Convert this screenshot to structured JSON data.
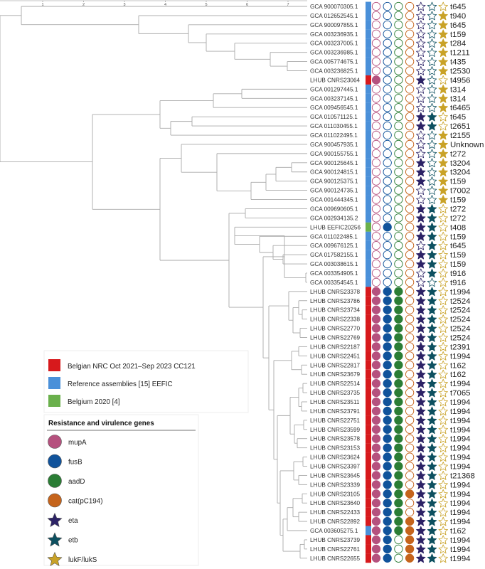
{
  "axis": {
    "ticks": [
      "1",
      "2",
      "3",
      "4",
      "5",
      "6",
      "7"
    ]
  },
  "colors": {
    "Belgian NRC": "#d7191c",
    "Reference": "#4a90d9",
    "Belgium 2020": "#6ab04c",
    "mupA": "#b5517e",
    "fusB": "#11539b",
    "aadD": "#2b7d35",
    "cat": "#c5641c",
    "eta": "#2c2266",
    "etb": "#0d5060",
    "lukF": "#c9a227"
  },
  "legend": {
    "sources": [
      {
        "label": "Belgian NRC Oct 2021–Sep 2023 CC121",
        "color": "#d7191c"
      },
      {
        "label": "Reference assemblies [15] EEFIC",
        "color": "#4a90d9"
      },
      {
        "label": "Belgium 2020 [4]",
        "color": "#6ab04c"
      }
    ],
    "genes_title": "Resistance and virulence genes",
    "genes": [
      {
        "label": "mupA",
        "shape": "circle",
        "color": "#b5517e"
      },
      {
        "label": "fusB",
        "shape": "circle",
        "color": "#11539b"
      },
      {
        "label": "aadD",
        "shape": "circle",
        "color": "#2b7d35"
      },
      {
        "label": "cat(pC194)",
        "shape": "circle",
        "color": "#c5641c"
      },
      {
        "label": "eta",
        "shape": "star",
        "color": "#2c2266"
      },
      {
        "label": "etb",
        "shape": "star",
        "color": "#0d5060"
      },
      {
        "label": "lukF/lukS",
        "shape": "star",
        "color": "#c9a227"
      }
    ]
  },
  "tips": [
    {
      "label": "GCA 900070305.1",
      "source": "Reference",
      "genes": [
        0,
        0,
        0,
        0,
        0,
        0,
        0
      ],
      "spa": "t645"
    },
    {
      "label": "GCA 012652545.1",
      "source": "Reference",
      "genes": [
        0,
        0,
        0,
        0,
        0,
        0,
        1
      ],
      "spa": "t940"
    },
    {
      "label": "GCA 900097855.1",
      "source": "Reference",
      "genes": [
        0,
        0,
        0,
        0,
        0,
        0,
        1
      ],
      "spa": "t645"
    },
    {
      "label": "GCA 003236935.1",
      "source": "Reference",
      "genes": [
        0,
        0,
        0,
        0,
        0,
        0,
        1
      ],
      "spa": "t159"
    },
    {
      "label": "GCA 003237005.1",
      "source": "Reference",
      "genes": [
        0,
        0,
        0,
        0,
        0,
        0,
        1
      ],
      "spa": "t284"
    },
    {
      "label": "GCA 003236985.1",
      "source": "Reference",
      "genes": [
        0,
        0,
        0,
        0,
        0,
        0,
        1
      ],
      "spa": "t1211"
    },
    {
      "label": "GCA 005774675.1",
      "source": "Reference",
      "genes": [
        0,
        0,
        0,
        0,
        0,
        0,
        1
      ],
      "spa": "t435"
    },
    {
      "label": "GCA 003236825.1",
      "source": "Reference",
      "genes": [
        0,
        0,
        0,
        0,
        0,
        0,
        1
      ],
      "spa": "t2530"
    },
    {
      "label": "LHUB CNRS23064",
      "source": "Belgian NRC",
      "genes": [
        1,
        0,
        0,
        0,
        1,
        0,
        0
      ],
      "spa": "t4956"
    },
    {
      "label": "GCA 001297445.1",
      "source": "Reference",
      "genes": [
        0,
        0,
        0,
        0,
        0,
        0,
        1
      ],
      "spa": "t314"
    },
    {
      "label": "GCA 003237145.1",
      "source": "Reference",
      "genes": [
        0,
        0,
        0,
        0,
        0,
        0,
        1
      ],
      "spa": "t314"
    },
    {
      "label": "GCA 009456545.1",
      "source": "Reference",
      "genes": [
        0,
        0,
        0,
        0,
        0,
        0,
        1
      ],
      "spa": "t6465"
    },
    {
      "label": "GCA 010571125.1",
      "source": "Reference",
      "genes": [
        0,
        0,
        0,
        0,
        1,
        1,
        0
      ],
      "spa": "t645"
    },
    {
      "label": "GCA 011030455.1",
      "source": "Reference",
      "genes": [
        0,
        0,
        0,
        0,
        1,
        1,
        0
      ],
      "spa": "t2651"
    },
    {
      "label": "GCA 011022495.1",
      "source": "Reference",
      "genes": [
        0,
        0,
        0,
        0,
        0,
        0,
        1
      ],
      "spa": "t2155"
    },
    {
      "label": "GCA 900457935.1",
      "source": "Reference",
      "genes": [
        0,
        0,
        0,
        0,
        0,
        0,
        1
      ],
      "spa": "Unknown"
    },
    {
      "label": "GCA 900155755.1",
      "source": "Reference",
      "genes": [
        0,
        0,
        0,
        0,
        0,
        0,
        1
      ],
      "spa": "t272"
    },
    {
      "label": "GCA 900125645.1",
      "source": "Reference",
      "genes": [
        0,
        0,
        0,
        0,
        1,
        0,
        1
      ],
      "spa": "t3204"
    },
    {
      "label": "GCA 900124815.1",
      "source": "Reference",
      "genes": [
        0,
        0,
        0,
        0,
        1,
        0,
        1
      ],
      "spa": "t3204"
    },
    {
      "label": "GCA 900125375.1",
      "source": "Reference",
      "genes": [
        0,
        0,
        0,
        0,
        1,
        0,
        1
      ],
      "spa": "t159"
    },
    {
      "label": "GCA 900124735.1",
      "source": "Reference",
      "genes": [
        0,
        0,
        0,
        0,
        0,
        0,
        1
      ],
      "spa": "t7002"
    },
    {
      "label": "GCA 001444345.1",
      "source": "Reference",
      "genes": [
        0,
        0,
        0,
        0,
        0,
        0,
        1
      ],
      "spa": "t159"
    },
    {
      "label": "GCA 009690605.1",
      "source": "Reference",
      "genes": [
        0,
        0,
        0,
        0,
        1,
        1,
        0
      ],
      "spa": "t272"
    },
    {
      "label": "GCA 002934135.2",
      "source": "Reference",
      "genes": [
        0,
        0,
        0,
        0,
        1,
        1,
        0
      ],
      "spa": "t272"
    },
    {
      "label": "LHUB EEFIC20256",
      "source": "Belgium 2020",
      "genes": [
        0,
        1,
        0,
        0,
        1,
        1,
        0
      ],
      "spa": "t408"
    },
    {
      "label": "GCA 011022485.1",
      "source": "Reference",
      "genes": [
        0,
        0,
        0,
        0,
        1,
        1,
        0
      ],
      "spa": "t159"
    },
    {
      "label": "GCA 009676125.1",
      "source": "Reference",
      "genes": [
        0,
        0,
        0,
        0,
        0,
        1,
        0
      ],
      "spa": "t645"
    },
    {
      "label": "GCA 017582155.1",
      "source": "Reference",
      "genes": [
        0,
        0,
        0,
        0,
        1,
        1,
        0
      ],
      "spa": "t159"
    },
    {
      "label": "GCA 003038615.1",
      "source": "Reference",
      "genes": [
        0,
        0,
        0,
        0,
        1,
        1,
        0
      ],
      "spa": "t159"
    },
    {
      "label": "GCA 003354905.1",
      "source": "Reference",
      "genes": [
        0,
        0,
        0,
        0,
        0,
        1,
        0
      ],
      "spa": "t916"
    },
    {
      "label": "GCA 003354545.1",
      "source": "Reference",
      "genes": [
        0,
        0,
        0,
        0,
        0,
        0,
        0
      ],
      "spa": "t916"
    },
    {
      "label": "LHUB CNRS23378",
      "source": "Belgian NRC",
      "genes": [
        1,
        1,
        1,
        0,
        1,
        1,
        0
      ],
      "spa": "t1994"
    },
    {
      "label": "LHUB CNRS23786",
      "source": "Belgian NRC",
      "genes": [
        1,
        1,
        1,
        0,
        1,
        1,
        0
      ],
      "spa": "t2524"
    },
    {
      "label": "LHUB CNRS23734",
      "source": "Belgian NRC",
      "genes": [
        1,
        1,
        1,
        0,
        1,
        1,
        0
      ],
      "spa": "t2524"
    },
    {
      "label": "LHUB CNRS22338",
      "source": "Belgian NRC",
      "genes": [
        1,
        1,
        1,
        0,
        1,
        1,
        0
      ],
      "spa": "t2524"
    },
    {
      "label": "LHUB CNRS22770",
      "source": "Belgian NRC",
      "genes": [
        1,
        1,
        1,
        0,
        1,
        1,
        0
      ],
      "spa": "t2524"
    },
    {
      "label": "LHUB CNRS22769",
      "source": "Belgian NRC",
      "genes": [
        1,
        1,
        1,
        0,
        1,
        1,
        0
      ],
      "spa": "t2524"
    },
    {
      "label": "LHUB CNRS22187",
      "source": "Belgian NRC",
      "genes": [
        1,
        1,
        1,
        0,
        1,
        1,
        0
      ],
      "spa": "t2391"
    },
    {
      "label": "LHUB CNRS22451",
      "source": "Belgian NRC",
      "genes": [
        1,
        1,
        1,
        0,
        1,
        1,
        0
      ],
      "spa": "t1994"
    },
    {
      "label": "LHUB CNRS22817",
      "source": "Belgian NRC",
      "genes": [
        1,
        1,
        1,
        0,
        1,
        1,
        0
      ],
      "spa": "t162"
    },
    {
      "label": "LHUB CNRS23679",
      "source": "Belgian NRC",
      "genes": [
        1,
        1,
        1,
        0,
        1,
        1,
        0
      ],
      "spa": "t162"
    },
    {
      "label": "LHUB CNRS22514",
      "source": "Belgian NRC",
      "genes": [
        1,
        1,
        1,
        0,
        1,
        1,
        0
      ],
      "spa": "t1994"
    },
    {
      "label": "LHUB CNRS23735",
      "source": "Belgian NRC",
      "genes": [
        1,
        1,
        1,
        0,
        1,
        1,
        0
      ],
      "spa": "t7065"
    },
    {
      "label": "LHUB CNRS23511",
      "source": "Belgian NRC",
      "genes": [
        1,
        1,
        1,
        0,
        1,
        1,
        0
      ],
      "spa": "t1994"
    },
    {
      "label": "LHUB CNRS23791",
      "source": "Belgian NRC",
      "genes": [
        1,
        1,
        1,
        0,
        1,
        1,
        0
      ],
      "spa": "t1994"
    },
    {
      "label": "LHUB CNRS22751",
      "source": "Belgian NRC",
      "genes": [
        1,
        1,
        1,
        0,
        1,
        1,
        0
      ],
      "spa": "t1994"
    },
    {
      "label": "LHUB CNRS23599",
      "source": "Belgian NRC",
      "genes": [
        1,
        1,
        1,
        0,
        1,
        1,
        0
      ],
      "spa": "t1994"
    },
    {
      "label": "LHUB CNRS23578",
      "source": "Belgian NRC",
      "genes": [
        1,
        1,
        1,
        0,
        1,
        1,
        0
      ],
      "spa": "t1994"
    },
    {
      "label": "LHUB CNRS23153",
      "source": "Belgian NRC",
      "genes": [
        1,
        1,
        1,
        0,
        1,
        1,
        0
      ],
      "spa": "t1994"
    },
    {
      "label": "LHUB CNRS23624",
      "source": "Belgian NRC",
      "genes": [
        1,
        1,
        1,
        0,
        1,
        1,
        0
      ],
      "spa": "t1994"
    },
    {
      "label": "LHUB CNRS23397",
      "source": "Belgian NRC",
      "genes": [
        1,
        1,
        1,
        0,
        1,
        1,
        0
      ],
      "spa": "t1994"
    },
    {
      "label": "LHUB CNRS23645",
      "source": "Belgian NRC",
      "genes": [
        1,
        1,
        1,
        0,
        1,
        1,
        0
      ],
      "spa": "t21368"
    },
    {
      "label": "LHUB CNRS23339",
      "source": "Belgian NRC",
      "genes": [
        1,
        1,
        1,
        0,
        1,
        1,
        0
      ],
      "spa": "t1994"
    },
    {
      "label": "LHUB CNRS23105",
      "source": "Belgian NRC",
      "genes": [
        1,
        1,
        1,
        1,
        1,
        1,
        0
      ],
      "spa": "t1994"
    },
    {
      "label": "LHUB CNRS23640",
      "source": "Belgian NRC",
      "genes": [
        1,
        1,
        1,
        0,
        1,
        1,
        0
      ],
      "spa": "t1994"
    },
    {
      "label": "LHUB CNRS22433",
      "source": "Belgian NRC",
      "genes": [
        1,
        1,
        1,
        0,
        1,
        1,
        0
      ],
      "spa": "t1994"
    },
    {
      "label": "LHUB CNRS22892",
      "source": "Belgian NRC",
      "genes": [
        1,
        1,
        1,
        1,
        1,
        1,
        0
      ],
      "spa": "t1994"
    },
    {
      "label": "GCA 003605275.1",
      "source": "Reference",
      "genes": [
        1,
        1,
        1,
        1,
        1,
        1,
        0
      ],
      "spa": "t162"
    },
    {
      "label": "LHUB CNRS23739",
      "source": "Belgian NRC",
      "genes": [
        1,
        1,
        0,
        1,
        1,
        1,
        0
      ],
      "spa": "t1994"
    },
    {
      "label": "LHUB CNRS22761",
      "source": "Belgian NRC",
      "genes": [
        1,
        1,
        0,
        1,
        1,
        1,
        0
      ],
      "spa": "t1994"
    },
    {
      "label": "LHUB CNRS22655",
      "source": "Belgian NRC",
      "genes": [
        1,
        1,
        0,
        1,
        1,
        1,
        0
      ],
      "spa": "t1994"
    }
  ]
}
